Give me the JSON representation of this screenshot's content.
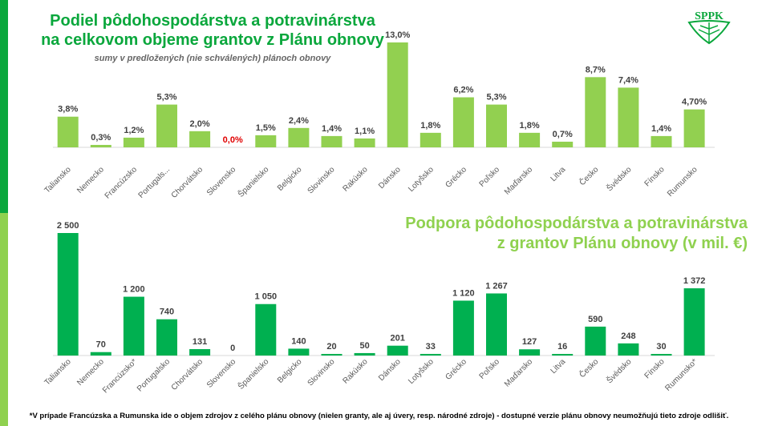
{
  "header": {
    "title_line1": "Podiel pôdohospodárstva a potravinárstva",
    "title_line2": "na celkovom objeme grantov z Plánu obnovy",
    "subtitle": "sumy v predložených (nie schválených) plánoch obnovy"
  },
  "second_title": {
    "line1": "Podpora pôdohospodárstva a potravinárstva",
    "line2": "z grantov Plánu obnovy (v mil. €)"
  },
  "logo": {
    "text": "SPPK"
  },
  "footnote": "*V prípade Francúzska a Rumunska ide o objem zdrojov z celého plánu obnovy (nielen granty, ale aj úvery, resp. národné zdroje) - dostupné verzie plánu obnovy neumožňujú tieto zdroje odlišiť.",
  "colors": {
    "top_bar": "#92d050",
    "bottom_bar": "#00b050",
    "zero_label": "#e00000"
  },
  "chart_data": [
    {
      "type": "bar",
      "title": "Podiel pôdohospodárstva a potravinárstva na celkovom objeme grantov z Plánu obnovy",
      "unit": "%",
      "categories": [
        "Taliansko",
        "Nemecko",
        "Francúzsko",
        "Portugals...",
        "Chorvátsko",
        "Slovensko",
        "Španielsko",
        "Belgicko",
        "Slovinsko",
        "Rakúsko",
        "Dánsko",
        "Lotyšsko",
        "Grécko",
        "Poľsko",
        "Maďarsko",
        "Litva",
        "Česko",
        "Švédsko",
        "Fínsko",
        "Rumunsko"
      ],
      "values": [
        3.8,
        0.3,
        1.2,
        5.3,
        2.0,
        0.0,
        1.5,
        2.4,
        1.4,
        1.1,
        13.0,
        1.8,
        6.2,
        5.3,
        1.8,
        0.7,
        8.7,
        7.4,
        1.4,
        4.7
      ],
      "labels": [
        "3,8%",
        "0,3%",
        "1,2%",
        "5,3%",
        "2,0%",
        "0,0%",
        "1,5%",
        "2,4%",
        "1,4%",
        "1,1%",
        "13,0%",
        "1,8%",
        "6,2%",
        "5,3%",
        "1,8%",
        "0,7%",
        "8,7%",
        "7,4%",
        "1,4%",
        "4,70%"
      ],
      "ylim": [
        0,
        13
      ]
    },
    {
      "type": "bar",
      "title": "Podpora pôdohospodárstva a potravinárstva z grantov Plánu obnovy (v mil. €)",
      "unit": "mil. €",
      "categories": [
        "Taliansko",
        "Nemecko",
        "Francúzsko*",
        "Portugalsko",
        "Chorvátsko",
        "Slovensko",
        "Španielsko",
        "Belgicko",
        "Slovinsko",
        "Rakúsko",
        "Dánsko",
        "Lotyšsko",
        "Grécko",
        "Poľsko",
        "Maďarsko",
        "Litva",
        "Česko",
        "Švédsko",
        "Fínsko",
        "Rumunsko*"
      ],
      "values": [
        2500,
        70,
        1200,
        740,
        131,
        0,
        1050,
        140,
        20,
        50,
        201,
        33,
        1120,
        1267,
        127,
        16,
        590,
        248,
        30,
        1372
      ],
      "labels": [
        "2 500",
        "70",
        "1 200",
        "740",
        "131",
        "0",
        "1 050",
        "140",
        "20",
        "50",
        "201",
        "33",
        "1 120",
        "1 267",
        "127",
        "16",
        "590",
        "248",
        "30",
        "1 372"
      ],
      "ylim": [
        0,
        2500
      ]
    }
  ]
}
